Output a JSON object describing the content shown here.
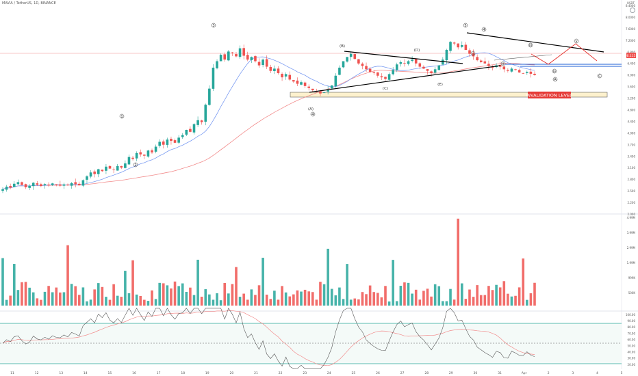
{
  "header": {
    "title": "MAVIA / TetherUS, 1D, BINANCE",
    "currency": "USDT"
  },
  "colors": {
    "up": "#26a69a",
    "down": "#ef5350",
    "ma_fast": "#7b9cf2",
    "ma_slow": "#f28b8b",
    "rsi": "#555555",
    "rsi_ma": "#f28b8b",
    "box_fill": "#fdf1cd",
    "invalidation_bg": "#e53935",
    "support": "#1e5fd4",
    "projection": "#e53935"
  },
  "chart_data": [
    {
      "type": "candlestick",
      "title": "MAVIA / TetherUS, 1D, BINANCE",
      "price_axis_labels": [
        "8.4000",
        "8.0000",
        "7.6000",
        "7.2000",
        "6.800",
        "6.400",
        "6.000",
        "5.600",
        "5.200",
        "4.800",
        "4.400",
        "4.000",
        "3.700",
        "3.400",
        "3.100",
        "2.800",
        "2.500",
        "2.200",
        "2.000"
      ],
      "last_price": "6.115",
      "ohlc_closes": [
        2.58,
        2.66,
        2.63,
        2.75,
        2.8,
        2.71,
        2.64,
        2.69,
        2.78,
        2.72,
        2.68,
        2.74,
        2.7,
        2.76,
        2.72,
        2.69,
        2.73,
        2.71,
        2.77,
        2.74,
        2.7,
        2.86,
        2.98,
        3.1,
        3.05,
        3.2,
        3.14,
        3.28,
        3.22,
        3.18,
        3.3,
        3.25,
        3.38,
        3.58,
        3.52,
        3.7,
        3.66,
        3.62,
        3.78,
        3.72,
        3.9,
        4.05,
        3.96,
        4.12,
        4.08,
        4.02,
        4.18,
        4.26,
        4.42,
        4.36,
        4.6,
        4.72,
        4.66,
        5.2,
        5.7,
        6.35,
        6.55,
        6.75,
        6.6,
        6.85,
        6.8,
        6.7,
        6.95,
        6.72,
        6.6,
        6.68,
        6.55,
        6.42,
        6.6,
        6.38,
        6.25,
        6.32,
        6.18,
        6.05,
        6.15,
        5.98,
        5.92,
        5.85,
        5.9,
        5.78,
        5.72,
        5.65,
        5.62,
        5.55,
        5.58,
        5.68,
        5.8,
        6.1,
        6.35,
        6.55,
        6.68,
        6.78,
        6.62,
        6.48,
        6.4,
        6.3,
        6.22,
        6.18,
        6.1,
        6.05,
        6.0,
        6.15,
        6.28,
        6.45,
        6.52,
        6.48,
        6.55,
        6.6,
        6.48,
        6.38,
        6.32,
        6.25,
        6.18,
        6.3,
        6.42,
        6.6,
        6.9,
        7.15,
        7.1,
        6.98,
        7.05,
        6.9,
        6.78,
        6.7,
        6.58,
        6.52,
        6.48,
        6.4,
        6.35,
        6.42,
        6.38,
        6.3,
        6.25,
        6.32,
        6.28,
        6.2,
        6.18,
        6.22,
        6.16,
        6.12
      ],
      "x_tick_labels": [
        "11",
        "12",
        "13",
        "14",
        "15",
        "16",
        "17",
        "18",
        "19",
        "20",
        "21",
        "22",
        "23",
        "24",
        "25",
        "26",
        "27",
        "28",
        "29",
        "30",
        "31",
        "Apr",
        "2",
        "3",
        "4",
        "5"
      ],
      "wave_labels": [
        "(A)",
        "4",
        "(B)",
        "(C)",
        "(D)",
        "(E)",
        "1",
        "2",
        "3",
        "4",
        "5",
        "i",
        "ii",
        "iii",
        "iv",
        "v",
        "A",
        "B",
        "C"
      ],
      "annotations": [
        "INVALIDATION LEVEL"
      ]
    },
    {
      "type": "bar",
      "title": "Volume",
      "axis_labels": [
        "4.99M",
        "3.99M",
        "2.99M",
        "1.99M",
        "999K",
        "500K"
      ]
    },
    {
      "type": "line",
      "title": "RSI",
      "axis_labels": [
        "100.00",
        "90.00",
        "80.00",
        "70.00",
        "60.00",
        "50.00",
        "40.00",
        "30.00",
        "20.00"
      ],
      "levels": [
        70,
        50,
        30
      ]
    }
  ]
}
